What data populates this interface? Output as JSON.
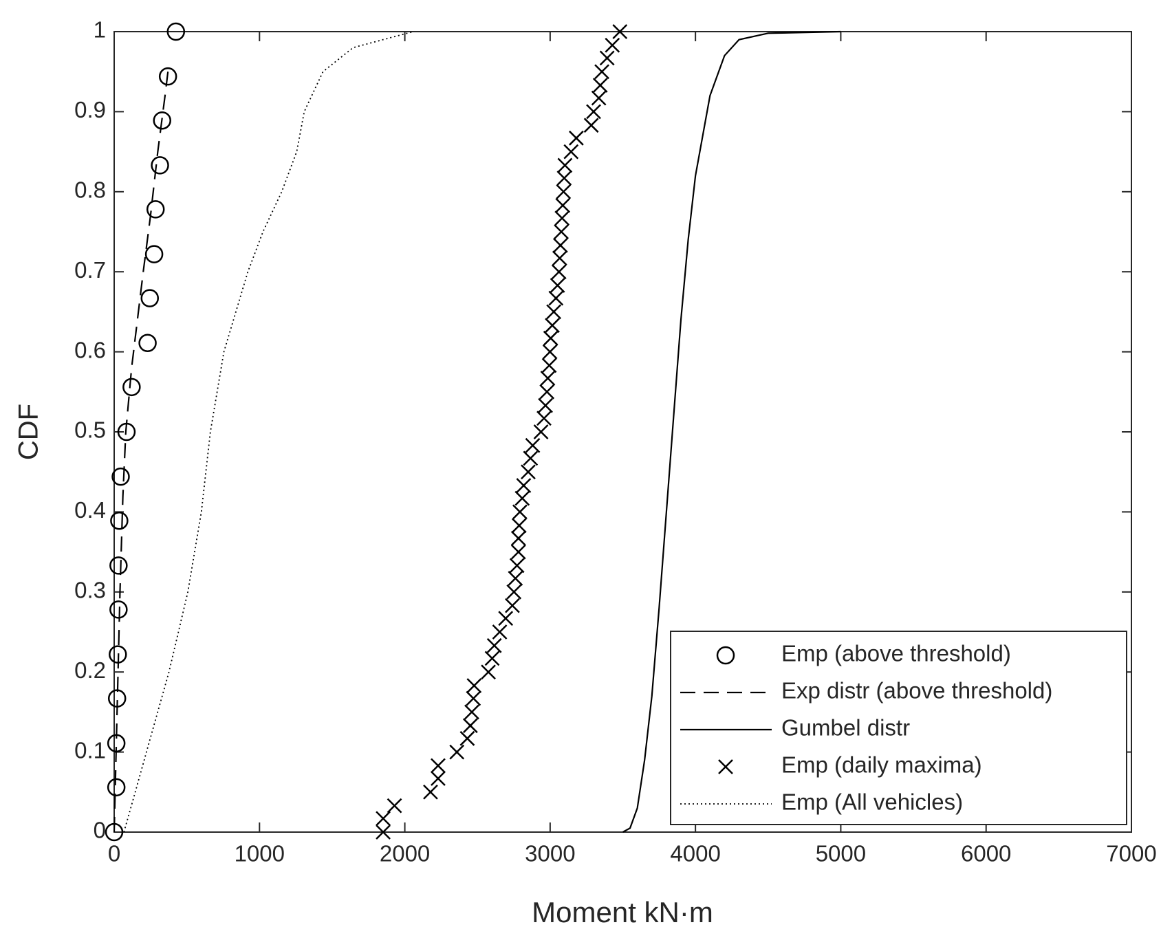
{
  "chart_data": {
    "type": "line",
    "xlabel": "Moment kN·m",
    "ylabel": "CDF",
    "xlim": [
      0,
      7000
    ],
    "xticks": [
      0,
      1000,
      2000,
      3000,
      4000,
      5000,
      6000,
      7000
    ],
    "ylim": [
      0,
      1
    ],
    "yticks": [
      0,
      0.1,
      0.2,
      0.3,
      0.4,
      0.5,
      0.6,
      0.7,
      0.8,
      0.9,
      1
    ],
    "legend": "southeast",
    "series": [
      {
        "name": "Emp (above threshold)",
        "color": "#000000",
        "marker": "circle",
        "linestyle": "none",
        "x": [
          0,
          15,
          15,
          20,
          25,
          30,
          30,
          35,
          45,
          85,
          120,
          230,
          245,
          275,
          285,
          315,
          330,
          370,
          425
        ],
        "values": [
          0,
          0.056,
          0.111,
          0.167,
          0.222,
          0.278,
          0.333,
          0.389,
          0.444,
          0.5,
          0.556,
          0.611,
          0.667,
          0.722,
          0.778,
          0.833,
          0.889,
          0.944,
          1
        ]
      },
      {
        "name": "Exp distr (above threshold)",
        "color": "#000000",
        "marker": "none",
        "linestyle": "dashed",
        "x": [
          0,
          20,
          40,
          60,
          80,
          120,
          160,
          200,
          250,
          300,
          350,
          370
        ],
        "values": [
          0,
          0.15,
          0.3,
          0.42,
          0.5,
          0.58,
          0.64,
          0.7,
          0.77,
          0.85,
          0.92,
          0.95
        ]
      },
      {
        "name": "Gumbel distr",
        "color": "#000000",
        "marker": "none",
        "linestyle": "solid",
        "x": [
          3500,
          3550,
          3600,
          3650,
          3700,
          3750,
          3800,
          3850,
          3900,
          3950,
          4000,
          4100,
          4200,
          4300,
          4500,
          5000
        ],
        "values": [
          0,
          0.005,
          0.03,
          0.09,
          0.17,
          0.28,
          0.4,
          0.52,
          0.64,
          0.74,
          0.82,
          0.92,
          0.97,
          0.99,
          0.998,
          1
        ]
      },
      {
        "name": "Emp (daily maxima)",
        "color": "#000000",
        "marker": "x",
        "linestyle": "none",
        "x": [
          1851,
          1851,
          1929,
          2177,
          2229,
          2229,
          2358,
          2430,
          2451,
          2461,
          2472,
          2477,
          2575,
          2601,
          2616,
          2653,
          2694,
          2740,
          2751,
          2761,
          2772,
          2782,
          2782,
          2787,
          2792,
          2808,
          2818,
          2849,
          2865,
          2880,
          2937,
          2958,
          2968,
          2978,
          2984,
          2994,
          2999,
          3004,
          3015,
          3025,
          3040,
          3051,
          3061,
          3066,
          3071,
          3077,
          3082,
          3087,
          3092,
          3097,
          3102,
          3144,
          3180,
          3283,
          3299,
          3335,
          3345,
          3356,
          3392,
          3428,
          3480
        ],
        "values": [
          0,
          0.017,
          0.033,
          0.05,
          0.067,
          0.083,
          0.1,
          0.117,
          0.133,
          0.15,
          0.167,
          0.183,
          0.2,
          0.217,
          0.233,
          0.25,
          0.267,
          0.283,
          0.3,
          0.317,
          0.333,
          0.35,
          0.367,
          0.383,
          0.4,
          0.417,
          0.433,
          0.45,
          0.467,
          0.483,
          0.5,
          0.517,
          0.533,
          0.55,
          0.567,
          0.583,
          0.6,
          0.617,
          0.633,
          0.65,
          0.667,
          0.683,
          0.7,
          0.717,
          0.733,
          0.75,
          0.767,
          0.783,
          0.8,
          0.817,
          0.833,
          0.85,
          0.867,
          0.883,
          0.9,
          0.917,
          0.933,
          0.95,
          0.967,
          0.983,
          1
        ]
      },
      {
        "name": "Emp (All vehicles)",
        "color": "#000000",
        "marker": "none",
        "linestyle": "dotted",
        "x": [
          67,
          145,
          222,
          377,
          507,
          600,
          662,
          755,
          920,
          1024,
          1153,
          1256,
          1308,
          1437,
          1644,
          2058
        ],
        "values": [
          0,
          0.05,
          0.1,
          0.2,
          0.3,
          0.4,
          0.5,
          0.6,
          0.7,
          0.75,
          0.8,
          0.85,
          0.9,
          0.95,
          0.98,
          1
        ]
      }
    ]
  }
}
